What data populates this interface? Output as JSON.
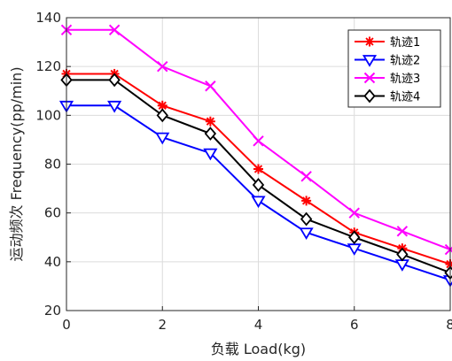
{
  "chart_data": {
    "type": "line",
    "xlabel": "负载 Load(kg)",
    "ylabel": "运动频次 Frequency(pp/min)",
    "xlim": [
      0,
      8
    ],
    "ylim": [
      20,
      140
    ],
    "xticks": [
      0,
      2,
      4,
      6,
      8
    ],
    "yticks": [
      20,
      40,
      60,
      80,
      100,
      120,
      140
    ],
    "x": [
      0,
      1,
      2,
      3,
      4,
      5,
      6,
      7,
      8
    ],
    "grid": true,
    "legend_position": "top-right",
    "series": [
      {
        "name": "轨迹1",
        "color": "#ff0000",
        "marker": "asterisk",
        "values": [
          117,
          117,
          104,
          97.5,
          78,
          65,
          52,
          45.5,
          39
        ]
      },
      {
        "name": "轨迹2",
        "color": "#0000ff",
        "marker": "triangle-down",
        "values": [
          104,
          104,
          91,
          84.5,
          65,
          52,
          45.5,
          39,
          32.5
        ]
      },
      {
        "name": "轨迹3",
        "color": "#ff00ff",
        "marker": "x",
        "values": [
          135,
          135,
          120,
          112,
          89.5,
          75,
          60,
          52.5,
          45
        ]
      },
      {
        "name": "轨迹4",
        "color": "#000000",
        "marker": "diamond",
        "values": [
          114.5,
          114.5,
          100,
          92.5,
          71.5,
          57.5,
          50,
          43,
          35.5
        ]
      }
    ]
  }
}
